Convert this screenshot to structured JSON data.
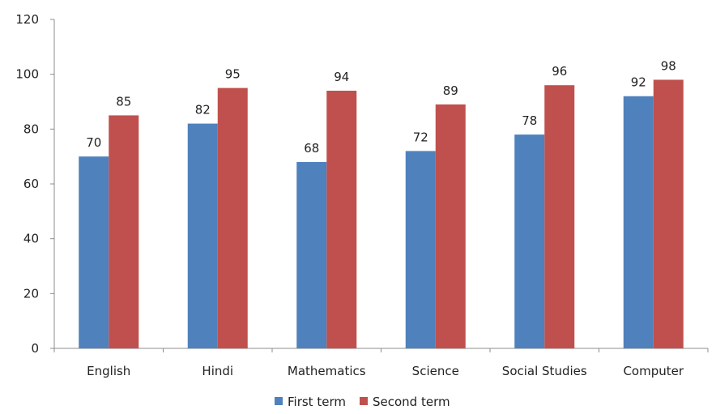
{
  "chart_data": {
    "type": "bar",
    "categories": [
      "English",
      "Hindi",
      "Mathematics",
      "Science",
      "Social Studies",
      "Computer"
    ],
    "series": [
      {
        "name": "First term",
        "values": [
          70,
          82,
          68,
          72,
          78,
          92
        ],
        "color": "#4f81bd"
      },
      {
        "name": "Second term",
        "values": [
          85,
          95,
          94,
          89,
          96,
          98
        ],
        "color": "#c0504d"
      }
    ],
    "ylim": [
      0,
      120
    ],
    "yticks": [
      0,
      20,
      40,
      60,
      80,
      100,
      120
    ],
    "grid": false,
    "legend_position": "bottom"
  }
}
